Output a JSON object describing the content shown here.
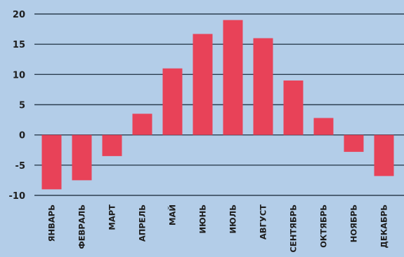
{
  "chart_data": {
    "type": "bar",
    "categories": [
      "ЯНВАРЬ",
      "ФЕВРАЛЬ",
      "МАРТ",
      "АПРЕЛЬ",
      "МАЙ",
      "ИЮНЬ",
      "ИЮЛЬ",
      "АВГУСТ",
      "СЕНТЯБРЬ",
      "ОКТЯБРЬ",
      "НОЯБРЬ",
      "ДЕКАБРЬ"
    ],
    "values": [
      -9,
      -7.5,
      -3.5,
      3.5,
      11,
      16.7,
      19,
      16,
      9,
      2.8,
      -2.8,
      -6.8
    ],
    "ylim": [
      -10,
      20
    ],
    "yticks": [
      20,
      15,
      10,
      5,
      0,
      -5,
      -10
    ],
    "ytick_labels": [
      "20",
      "15",
      "10",
      "5",
      "0",
      "-5",
      "-10"
    ],
    "title": "",
    "xlabel": "",
    "ylabel": "",
    "grid": true,
    "colors": {
      "bar": "#e84258",
      "grid": "#2c3e50",
      "background": "#b3cde8"
    }
  }
}
